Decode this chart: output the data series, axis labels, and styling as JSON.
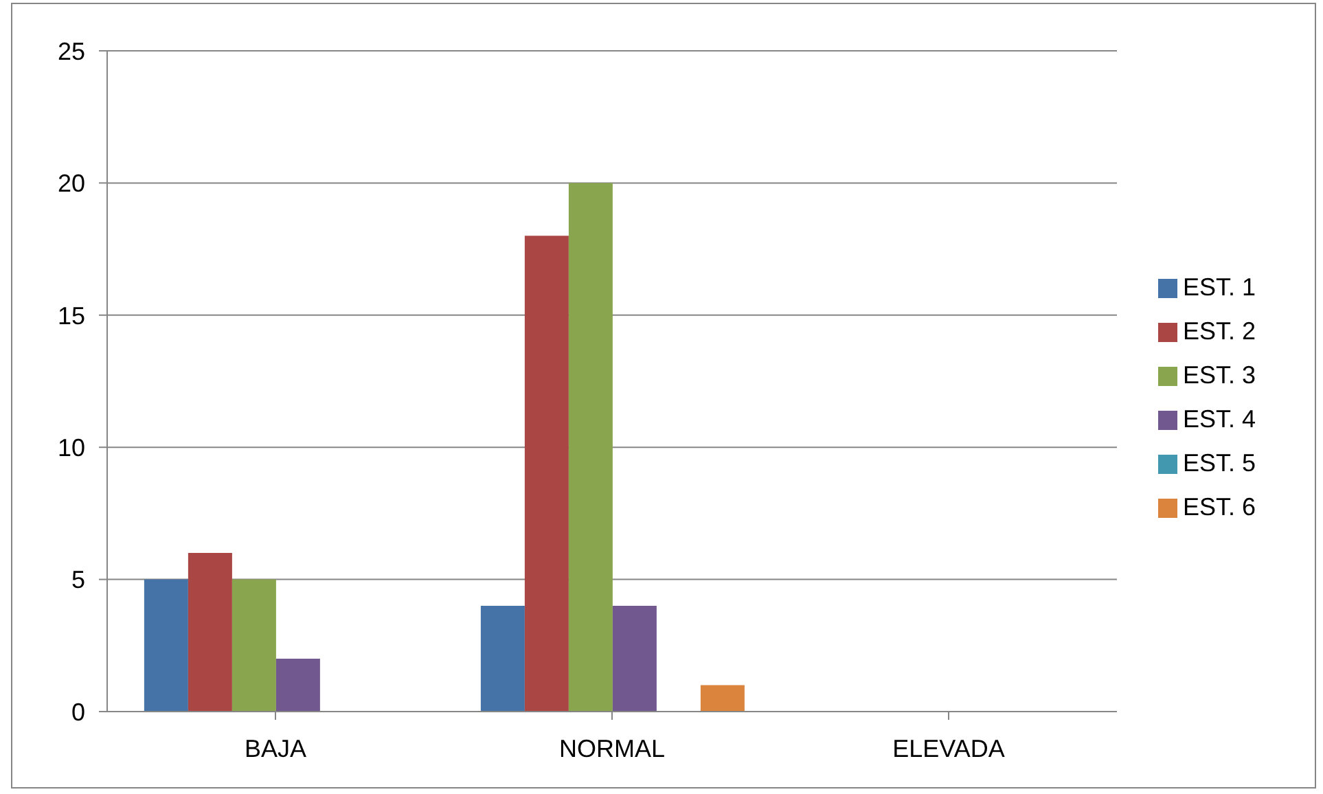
{
  "chart_data": {
    "type": "bar",
    "categories": [
      "BAJA",
      "NORMAL",
      "ELEVADA"
    ],
    "series": [
      {
        "name": "EST. 1",
        "color": "#4572a7",
        "values": [
          5,
          4,
          0
        ]
      },
      {
        "name": "EST. 2",
        "color": "#aa4643",
        "values": [
          6,
          18,
          0
        ]
      },
      {
        "name": "EST. 3",
        "color": "#89a54e",
        "values": [
          5,
          20,
          0
        ]
      },
      {
        "name": "EST. 4",
        "color": "#71588f",
        "values": [
          2,
          4,
          0
        ]
      },
      {
        "name": "EST. 5",
        "color": "#4198af",
        "values": [
          0,
          0,
          0
        ]
      },
      {
        "name": "EST. 6",
        "color": "#db843d",
        "values": [
          0,
          1,
          0
        ]
      }
    ],
    "ylim": [
      0,
      25
    ],
    "yticks": [
      0,
      5,
      10,
      15,
      20,
      25
    ],
    "grid": "y",
    "legend": "right"
  }
}
